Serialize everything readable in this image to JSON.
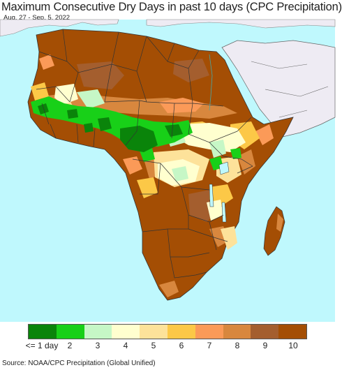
{
  "title": "Maximum Consecutive Dry Days in past 10 days (CPC Precipitation)",
  "subtitle": "Aug. 27 - Sep. 5, 2022",
  "source": "Source: NOAA/CPC Precipitation (Global Unified)",
  "colors": {
    "ocean": "#bff8fd",
    "other_land": "#eeebf3",
    "border": "#333333",
    "class_1": "#0a840a",
    "class_2": "#18d018",
    "class_3": "#c6f7c6",
    "class_4": "#ffffcf",
    "class_5": "#fde29a",
    "class_6": "#fcc847",
    "class_7": "#fb9a58",
    "class_8": "#d8873e",
    "class_9": "#a45e2e",
    "class_10": "#a44e04"
  },
  "legend": {
    "labels": [
      "<= 1 day",
      "2",
      "3",
      "4",
      "5",
      "6",
      "7",
      "8",
      "9",
      "10"
    ],
    "swatches": [
      "#0a840a",
      "#18d018",
      "#c6f7c6",
      "#ffffcf",
      "#fde29a",
      "#fcc847",
      "#fb9a58",
      "#d8873e",
      "#a45e2e",
      "#a44e04"
    ]
  }
}
